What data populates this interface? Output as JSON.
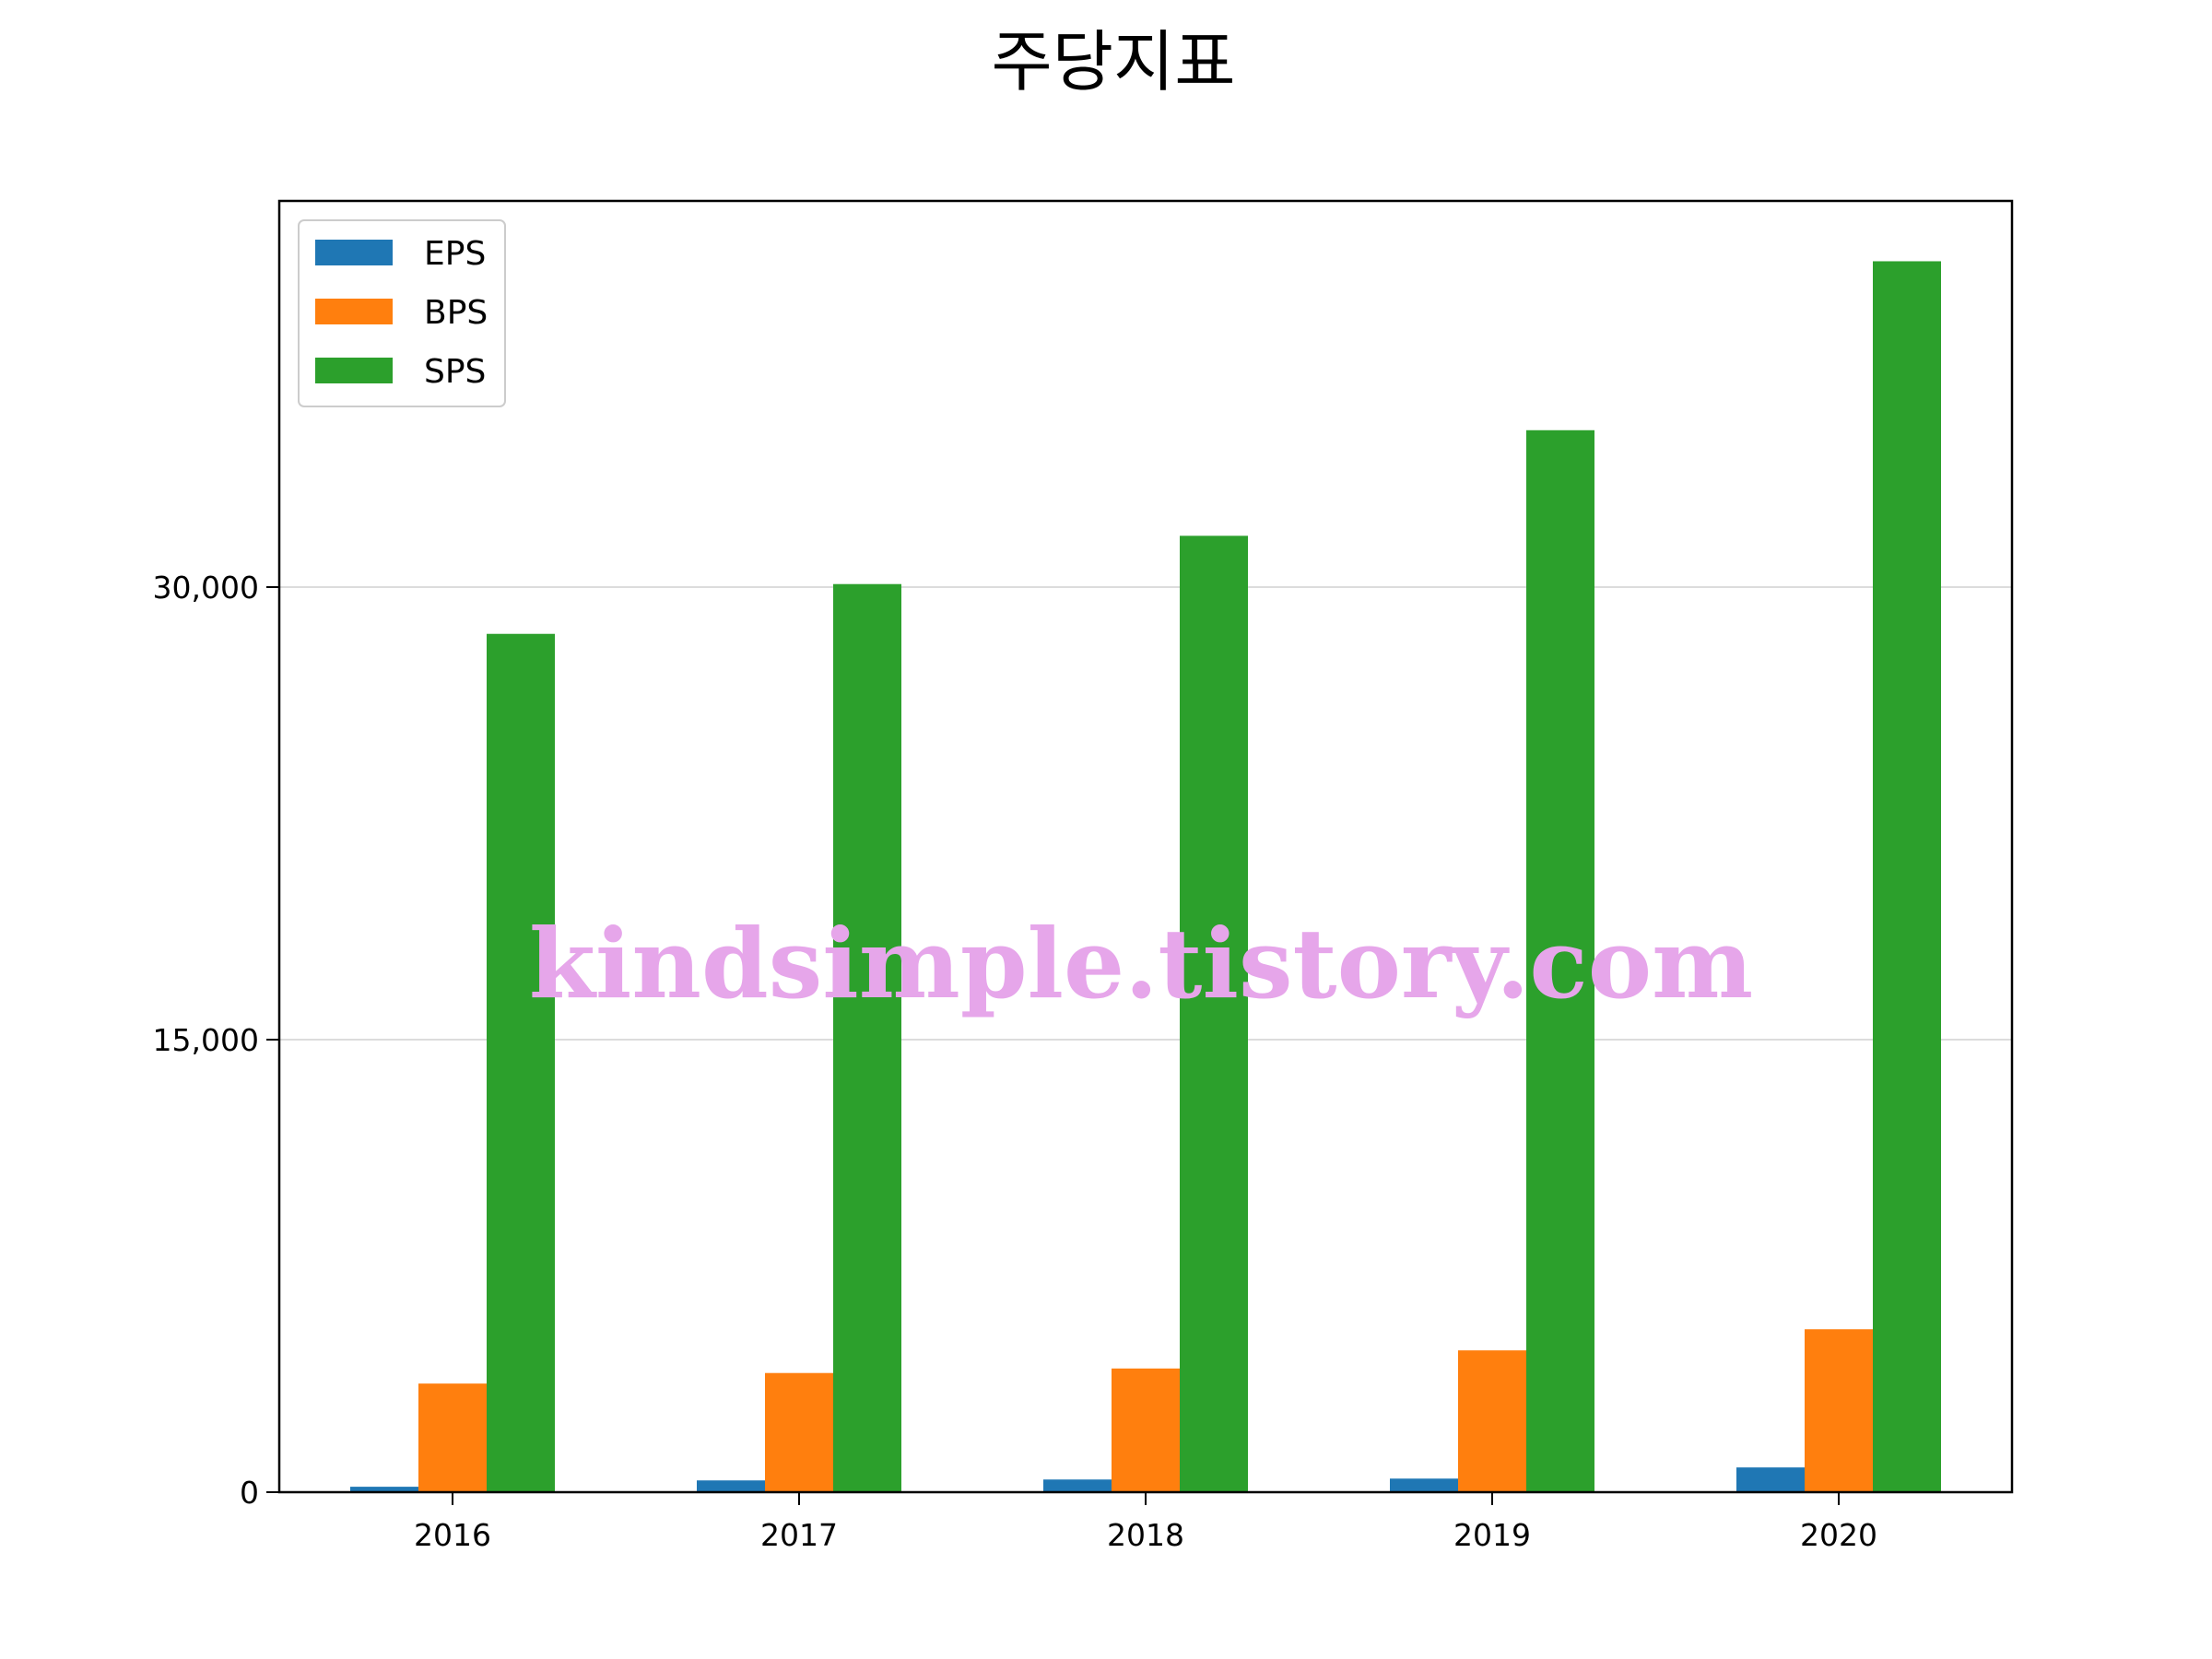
{
  "chart_data": {
    "type": "bar",
    "title": "주당지표",
    "categories": [
      "2016",
      "2017",
      "2018",
      "2019",
      "2020"
    ],
    "series": [
      {
        "name": "EPS",
        "color": "#1f77b4",
        "values": [
          180,
          390,
          420,
          450,
          820
        ]
      },
      {
        "name": "BPS",
        "color": "#ff7f0e",
        "values": [
          3600,
          3950,
          4100,
          4700,
          5400
        ]
      },
      {
        "name": "SPS",
        "color": "#2ca02c",
        "values": [
          28450,
          30100,
          31700,
          35200,
          40800
        ]
      }
    ],
    "yticks": [
      0,
      15000,
      30000
    ],
    "ytick_labels": [
      "0",
      "15,000",
      "30,000"
    ],
    "ylim": [
      0,
      42800
    ],
    "grid": "y",
    "legend": "top-left",
    "xlabel": "",
    "ylabel": ""
  },
  "watermark": "kindsimple.tistory.com"
}
